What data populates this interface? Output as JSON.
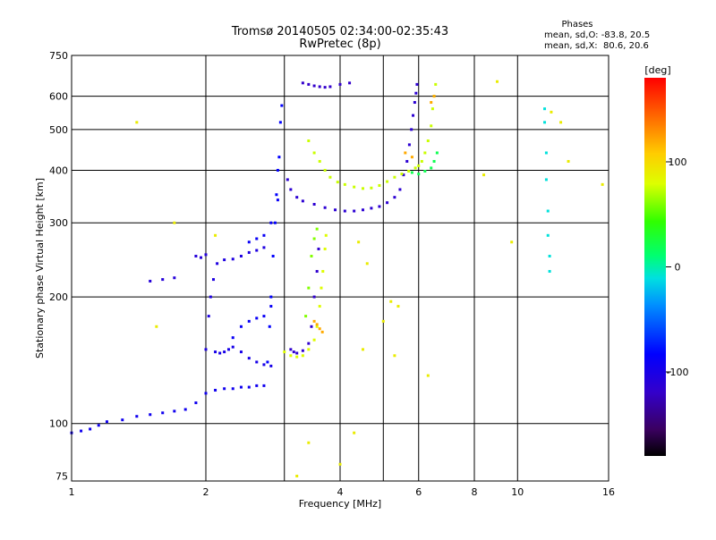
{
  "chart_data": {
    "type": "scatter",
    "title": "Tromsø 20140505 02:34:00-02:35:43",
    "subtitle": "RwPretec (8p)",
    "xlabel": "Frequency [MHz]",
    "ylabel": "Stationary phase Virtual Height [km]",
    "x_scale": "log",
    "y_scale": "log",
    "xlim": [
      1,
      16
    ],
    "ylim": [
      73,
      750
    ],
    "x_ticks": [
      1,
      2,
      4,
      6,
      8,
      10,
      16
    ],
    "x_tick_labels": [
      "1",
      "2",
      "4",
      "6",
      "8",
      "10",
      "16"
    ],
    "y_ticks": [
      75,
      100,
      200,
      300,
      400,
      500,
      600,
      750
    ],
    "y_tick_labels": [
      "75",
      "100",
      "200",
      "300",
      "400",
      "500",
      "600",
      "750"
    ],
    "x_grid": [
      1,
      2,
      3,
      4,
      5,
      6,
      8,
      10,
      16
    ],
    "y_grid": [
      100,
      200,
      300,
      400,
      500,
      600,
      750
    ],
    "stats": {
      "heading": "Phases",
      "line1": "mean, sd,O: -83.8, 20.5",
      "line2": "mean, sd,X:  80.6, 20.6"
    },
    "colorbar": {
      "unit_label": "[deg]",
      "range": [
        -180,
        180
      ],
      "ticks": [
        100,
        0,
        -100
      ],
      "tick_labels": [
        "100",
        "0",
        "-100"
      ]
    },
    "series": [
      {
        "phase": -95,
        "points": [
          [
            1.0,
            95
          ],
          [
            1.05,
            96
          ],
          [
            1.1,
            97
          ],
          [
            1.15,
            99
          ],
          [
            1.2,
            101
          ],
          [
            1.3,
            102
          ],
          [
            1.4,
            104
          ],
          [
            1.5,
            105
          ],
          [
            1.6,
            106
          ],
          [
            1.7,
            107
          ],
          [
            1.8,
            108
          ],
          [
            1.9,
            112
          ],
          [
            2.0,
            118
          ],
          [
            2.1,
            120
          ],
          [
            2.2,
            121
          ],
          [
            2.3,
            121
          ],
          [
            2.4,
            122
          ],
          [
            2.5,
            122
          ],
          [
            2.6,
            123
          ],
          [
            2.7,
            123
          ]
        ]
      },
      {
        "phase": -105,
        "points": [
          [
            2.0,
            150
          ],
          [
            2.03,
            180
          ],
          [
            2.05,
            200
          ],
          [
            2.08,
            220
          ],
          [
            2.12,
            240
          ],
          [
            2.2,
            245
          ],
          [
            2.3,
            246
          ],
          [
            2.4,
            250
          ],
          [
            2.5,
            255
          ],
          [
            2.6,
            258
          ],
          [
            2.7,
            262
          ]
        ]
      },
      {
        "phase": -100,
        "points": [
          [
            2.1,
            148
          ],
          [
            2.15,
            147
          ],
          [
            2.2,
            148
          ],
          [
            2.25,
            150
          ],
          [
            2.3,
            152
          ],
          [
            2.4,
            148
          ],
          [
            2.5,
            143
          ],
          [
            2.6,
            140
          ],
          [
            2.7,
            138
          ],
          [
            2.8,
            137
          ]
        ]
      },
      {
        "phase": -85,
        "points": [
          [
            2.75,
            140
          ],
          [
            2.78,
            170
          ],
          [
            2.8,
            200
          ],
          [
            2.83,
            250
          ],
          [
            2.86,
            300
          ],
          [
            2.88,
            350
          ],
          [
            2.9,
            400
          ],
          [
            2.92,
            430
          ],
          [
            2.94,
            520
          ],
          [
            2.96,
            570
          ]
        ]
      },
      {
        "phase": -90,
        "points": [
          [
            2.3,
            160
          ],
          [
            2.4,
            170
          ],
          [
            2.5,
            175
          ],
          [
            2.6,
            178
          ],
          [
            2.7,
            180
          ],
          [
            2.8,
            190
          ],
          [
            2.5,
            270
          ],
          [
            2.6,
            275
          ],
          [
            2.7,
            280
          ],
          [
            2.8,
            300
          ],
          [
            2.9,
            340
          ]
        ]
      },
      {
        "phase": -110,
        "points": [
          [
            1.5,
            218
          ],
          [
            1.6,
            220
          ],
          [
            1.7,
            222
          ],
          [
            1.9,
            250
          ],
          [
            1.95,
            248
          ],
          [
            2.0,
            252
          ]
        ]
      },
      {
        "phase": -115,
        "points": [
          [
            3.05,
            380
          ],
          [
            3.1,
            360
          ],
          [
            3.2,
            345
          ],
          [
            3.3,
            338
          ],
          [
            3.5,
            332
          ],
          [
            3.7,
            326
          ],
          [
            3.9,
            322
          ],
          [
            4.1,
            320
          ],
          [
            4.3,
            320
          ],
          [
            4.5,
            322
          ],
          [
            4.7,
            325
          ],
          [
            4.9,
            328
          ],
          [
            5.1,
            335
          ],
          [
            5.3,
            345
          ],
          [
            5.45,
            360
          ],
          [
            5.55,
            390
          ],
          [
            5.65,
            420
          ],
          [
            5.72,
            460
          ],
          [
            5.78,
            500
          ],
          [
            5.83,
            540
          ],
          [
            5.88,
            580
          ],
          [
            5.92,
            610
          ],
          [
            5.95,
            640
          ]
        ]
      },
      {
        "phase": -120,
        "points": [
          [
            3.3,
            645
          ],
          [
            3.4,
            640
          ],
          [
            3.5,
            635
          ],
          [
            3.6,
            632
          ],
          [
            3.7,
            630
          ],
          [
            3.8,
            632
          ],
          [
            4.0,
            640
          ],
          [
            4.2,
            645
          ]
        ]
      },
      {
        "phase": -118,
        "points": [
          [
            3.1,
            150
          ],
          [
            3.15,
            148
          ],
          [
            3.2,
            147
          ],
          [
            3.3,
            149
          ],
          [
            3.4,
            155
          ],
          [
            3.45,
            170
          ],
          [
            3.5,
            200
          ],
          [
            3.55,
            230
          ],
          [
            3.58,
            260
          ]
        ]
      },
      {
        "phase": 75,
        "points": [
          [
            3.4,
            470
          ],
          [
            3.5,
            440
          ],
          [
            3.6,
            420
          ],
          [
            3.7,
            400
          ],
          [
            3.8,
            385
          ],
          [
            3.95,
            375
          ],
          [
            4.1,
            370
          ],
          [
            4.3,
            365
          ],
          [
            4.5,
            362
          ],
          [
            4.7,
            363
          ],
          [
            4.9,
            368
          ],
          [
            5.1,
            376
          ],
          [
            5.3,
            385
          ],
          [
            5.5,
            392
          ],
          [
            5.7,
            398
          ],
          [
            5.9,
            405
          ],
          [
            6.0,
            410
          ],
          [
            6.1,
            420
          ],
          [
            6.2,
            440
          ],
          [
            6.3,
            470
          ],
          [
            6.4,
            510
          ],
          [
            6.45,
            560
          ],
          [
            6.5,
            600
          ],
          [
            6.55,
            640
          ]
        ]
      },
      {
        "phase": 80,
        "points": [
          [
            3.0,
            148
          ],
          [
            3.1,
            145
          ],
          [
            3.2,
            144
          ],
          [
            3.3,
            145
          ],
          [
            3.4,
            150
          ],
          [
            3.5,
            158
          ],
          [
            3.55,
            170
          ],
          [
            3.6,
            190
          ],
          [
            3.63,
            210
          ],
          [
            3.66,
            230
          ],
          [
            3.7,
            260
          ],
          [
            3.72,
            280
          ]
        ]
      },
      {
        "phase": 60,
        "points": [
          [
            3.35,
            180
          ],
          [
            3.4,
            210
          ],
          [
            3.45,
            250
          ],
          [
            3.5,
            275
          ],
          [
            3.55,
            290
          ]
        ]
      },
      {
        "phase": 120,
        "points": [
          [
            3.5,
            175
          ],
          [
            3.55,
            172
          ],
          [
            3.6,
            168
          ],
          [
            3.65,
            165
          ],
          [
            5.6,
            440
          ],
          [
            5.8,
            430
          ],
          [
            6.4,
            580
          ],
          [
            6.5,
            600
          ]
        ]
      },
      {
        "phase": 20,
        "points": [
          [
            5.8,
            395
          ],
          [
            6.0,
            392
          ],
          [
            6.2,
            398
          ],
          [
            6.4,
            405
          ],
          [
            6.5,
            420
          ],
          [
            6.6,
            440
          ]
        ]
      },
      {
        "phase": -10,
        "points": [
          [
            11.5,
            560
          ],
          [
            11.5,
            520
          ],
          [
            11.6,
            440
          ],
          [
            11.6,
            380
          ],
          [
            11.7,
            320
          ],
          [
            11.7,
            280
          ],
          [
            11.8,
            250
          ],
          [
            11.8,
            230
          ]
        ]
      },
      {
        "phase": 90,
        "points": [
          [
            1.4,
            520
          ],
          [
            4.4,
            270
          ],
          [
            4.5,
            150
          ],
          [
            4.6,
            240
          ],
          [
            5.2,
            195
          ],
          [
            5.0,
            175
          ],
          [
            5.4,
            190
          ],
          [
            3.2,
            75
          ],
          [
            3.4,
            90
          ],
          [
            4.0,
            80
          ],
          [
            4.3,
            95
          ],
          [
            5.3,
            145
          ],
          [
            6.3,
            130
          ],
          [
            8.4,
            390
          ],
          [
            9.7,
            270
          ],
          [
            11.9,
            550
          ],
          [
            12.5,
            520
          ],
          [
            15.5,
            370
          ],
          [
            1.55,
            170
          ],
          [
            9.0,
            650
          ],
          [
            13.0,
            420
          ],
          [
            2.1,
            280
          ],
          [
            1.7,
            300
          ]
        ]
      }
    ]
  }
}
